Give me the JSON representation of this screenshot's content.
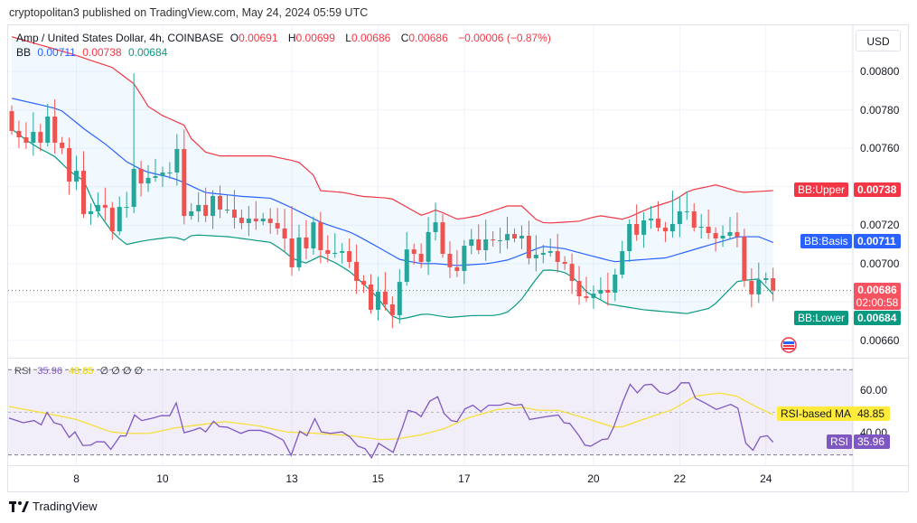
{
  "published": "cryptopolitan3 published on TradingView.com, May 24, 2024 05:59 UTC",
  "legend": {
    "symbol": "Amp / United States Dollar, 4h, COINBASE",
    "o_label": "O",
    "o": "0.00691",
    "h_label": "H",
    "h": "0.00699",
    "l_label": "L",
    "l": "0.00686",
    "c_label": "C",
    "c": "0.00686",
    "change": "−0.00006 (−0.87%)",
    "bb_label": "BB",
    "bb_basis": "0.00711",
    "bb_upper": "0.00738",
    "bb_lower": "0.00684"
  },
  "rsi_legend": {
    "label": "RSI",
    "rsi": "35.96",
    "ma": "48.85",
    "extras": "∅ ∅ ∅ ∅"
  },
  "currency": "USD",
  "tags": {
    "upper_label": "BB:Upper",
    "upper_value": "0.00738",
    "basis_label": "BB:Basis",
    "basis_value": "0.00711",
    "price_value": "0.00686",
    "countdown": "02:00:58",
    "lower_label": "BB:Lower",
    "lower_value": "0.00684",
    "rsi_ma_label": "RSI-based MA",
    "rsi_ma_value": "48.85",
    "rsi_label": "RSI",
    "rsi_value": "35.96"
  },
  "footer": {
    "brand": "TradingView"
  },
  "colors": {
    "up": "#26a69a",
    "down": "#ef5350",
    "upper": "#f23645",
    "basis": "#2962ff",
    "lower": "#089981",
    "rsi": "#7e57c2",
    "rsi_ma": "#f5e03a",
    "band_fill": "#2196f3"
  },
  "chart_data": [
    {
      "type": "candlestick",
      "title": "Amp / United States Dollar, 4h, COINBASE",
      "ylabel": "USD",
      "ylim": [
        0.00647,
        0.00818
      ],
      "y_ticks": [
        "0.00800",
        "0.00780",
        "0.00760",
        "0.00720",
        "0.00700",
        "0.00660"
      ],
      "grid_levels": [
        0.008,
        0.0078,
        0.0076,
        0.0074,
        0.0072,
        0.007,
        0.0068,
        0.0066
      ],
      "x_ticks": [
        {
          "label": "8",
          "index": 9
        },
        {
          "label": "10",
          "index": 21
        },
        {
          "label": "13",
          "index": 39
        },
        {
          "label": "15",
          "index": 51
        },
        {
          "label": "17",
          "index": 63
        },
        {
          "label": "20",
          "index": 81
        },
        {
          "label": "22",
          "index": 93
        },
        {
          "label": "24",
          "index": 105
        }
      ],
      "first_open": 0.007793,
      "closes": [
        0.00769,
        0.007657,
        0.007629,
        0.007685,
        0.007629,
        0.007765,
        0.007629,
        0.007601,
        0.007427,
        0.007483,
        0.007258,
        0.007272,
        0.007305,
        0.007291,
        0.007168,
        0.007295,
        0.007295,
        0.007493,
        0.007417,
        0.007446,
        0.007455,
        0.007474,
        0.007474,
        0.007596,
        0.007248,
        0.007272,
        0.007305,
        0.007248,
        0.007352,
        0.007281,
        0.007281,
        0.007239,
        0.007211,
        0.007234,
        0.00722,
        0.007234,
        0.007211,
        0.007183,
        0.007131,
        0.006981,
        0.007136,
        0.007079,
        0.007215,
        0.00707,
        0.007051,
        0.007056,
        0.007065,
        0.007009,
        0.00691,
        0.006891,
        0.00676,
        0.006854,
        0.006788,
        0.006732,
        0.006905,
        0.007074,
        0.007051,
        0.007009,
        0.007164,
        0.007215,
        0.007051,
        0.006981,
        0.006962,
        0.007093,
        0.007126,
        0.00707,
        0.007126,
        0.007121,
        0.007121,
        0.007154,
        0.007131,
        0.007145,
        0.007028,
        0.007046,
        0.007056,
        0.007065,
        0.007009,
        0.006999,
        0.00691,
        0.00683,
        0.006821,
        0.006844,
        0.006863,
        0.006849,
        0.006943,
        0.007065,
        0.007206,
        0.00715,
        0.007225,
        0.007234,
        0.007187,
        0.007168,
        0.007206,
        0.007272,
        0.007272,
        0.007187,
        0.007192,
        0.007159,
        0.007131,
        0.007145,
        0.007164,
        0.00714,
        0.00691,
        0.00684,
        0.006915,
        0.006924,
        0.00686
      ],
      "high_overrides": {
        "17": 0.00799,
        "39": 0.0073,
        "86": 0.00723,
        "92": 0.00738
      },
      "last_price": 0.00686,
      "bb_upper": [
        [
          0,
          0.00818
        ],
        [
          8.4,
          0.00809
        ],
        [
          14,
          0.00802
        ],
        [
          17.2,
          0.00793
        ],
        [
          18.9,
          0.00782
        ],
        [
          21,
          0.00777
        ],
        [
          24,
          0.00772
        ],
        [
          25,
          0.00765
        ],
        [
          27,
          0.00758
        ],
        [
          29,
          0.00756
        ],
        [
          36,
          0.00756
        ],
        [
          39.9,
          0.00753
        ],
        [
          42,
          0.00746
        ],
        [
          42.9,
          0.00738
        ],
        [
          46.2,
          0.00737
        ],
        [
          48.7,
          0.00735
        ],
        [
          52.8,
          0.00734
        ],
        [
          57.1,
          0.00725
        ],
        [
          59.1,
          0.00728
        ],
        [
          62.1,
          0.00723
        ],
        [
          65,
          0.00725
        ],
        [
          69,
          0.0073
        ],
        [
          71,
          0.0073
        ],
        [
          73,
          0.00723
        ],
        [
          74.2,
          0.00721
        ],
        [
          78.9,
          0.00722
        ],
        [
          81.8,
          0.00725
        ],
        [
          85.2,
          0.00723
        ],
        [
          88.9,
          0.00729
        ],
        [
          92.3,
          0.00733
        ],
        [
          94.3,
          0.00738
        ],
        [
          98.1,
          0.00741
        ],
        [
          101.5,
          0.00737
        ],
        [
          106,
          0.00738
        ]
      ],
      "bb_basis": [
        [
          0,
          0.00786
        ],
        [
          4.7,
          0.00782
        ],
        [
          6.8,
          0.0078
        ],
        [
          10.1,
          0.0077
        ],
        [
          13.1,
          0.00762
        ],
        [
          16,
          0.00753
        ],
        [
          18.5,
          0.00748
        ],
        [
          21.9,
          0.00745
        ],
        [
          23.5,
          0.00743
        ],
        [
          26.9,
          0.00737
        ],
        [
          32,
          0.00735
        ],
        [
          36.1,
          0.00734
        ],
        [
          39,
          0.00729
        ],
        [
          43.3,
          0.00721
        ],
        [
          47.4,
          0.00716
        ],
        [
          50.8,
          0.00709
        ],
        [
          54.1,
          0.00702
        ],
        [
          57.1,
          0.007
        ],
        [
          59.1,
          0.007
        ],
        [
          62.1,
          0.00699
        ],
        [
          66.3,
          0.007
        ],
        [
          69.2,
          0.00702
        ],
        [
          72.6,
          0.00707
        ],
        [
          73.8,
          0.00709
        ],
        [
          76.7,
          0.00708
        ],
        [
          79.7,
          0.00705
        ],
        [
          83.9,
          0.00701
        ],
        [
          91.1,
          0.00703
        ],
        [
          96.5,
          0.00709
        ],
        [
          101.1,
          0.00714
        ],
        [
          104,
          0.00714
        ],
        [
          106,
          0.00711
        ]
      ],
      "bb_lower": [
        [
          0,
          0.0077
        ],
        [
          2.1,
          0.00764
        ],
        [
          3.8,
          0.0076
        ],
        [
          5.9,
          0.00756
        ],
        [
          8.4,
          0.00747
        ],
        [
          10.1,
          0.00743
        ],
        [
          11.8,
          0.00728
        ],
        [
          13.1,
          0.00721
        ],
        [
          14.3,
          0.00715
        ],
        [
          16,
          0.0071
        ],
        [
          18.5,
          0.00712
        ],
        [
          22.6,
          0.00714
        ],
        [
          23.9,
          0.00712
        ],
        [
          25.2,
          0.00715
        ],
        [
          30.2,
          0.00714
        ],
        [
          36.1,
          0.00711
        ],
        [
          37.7,
          0.00707
        ],
        [
          39,
          0.00703
        ],
        [
          40.8,
          0.007
        ],
        [
          43,
          0.00704
        ],
        [
          45.3,
          0.007
        ],
        [
          47.4,
          0.00695
        ],
        [
          50.8,
          0.00683
        ],
        [
          52.8,
          0.00673
        ],
        [
          54.1,
          0.00671
        ],
        [
          57.5,
          0.00674
        ],
        [
          60.9,
          0.00672
        ],
        [
          64.2,
          0.00673
        ],
        [
          67.5,
          0.00673
        ],
        [
          69.2,
          0.00675
        ],
        [
          70.9,
          0.00681
        ],
        [
          72.6,
          0.0069
        ],
        [
          74.1,
          0.00697
        ],
        [
          76.7,
          0.00696
        ],
        [
          78.5,
          0.00692
        ],
        [
          80.1,
          0.00685
        ],
        [
          83,
          0.00679
        ],
        [
          88,
          0.00676
        ],
        [
          94,
          0.00674
        ],
        [
          97.4,
          0.00677
        ],
        [
          101.1,
          0.00691
        ],
        [
          104,
          0.00692
        ],
        [
          106,
          0.00684
        ]
      ]
    },
    {
      "type": "line",
      "title": "RSI",
      "ylim": [
        20,
        80
      ],
      "y_ticks": [
        "60.00",
        "40.00"
      ],
      "bands": [
        70,
        50,
        30
      ],
      "series": [
        {
          "name": "RSI",
          "points": [
            [
              -0.4,
              47.3
            ],
            [
              1.6,
              45.1
            ],
            [
              3.1,
              46.1
            ],
            [
              4.1,
              44.1
            ],
            [
              4.9,
              49.9
            ],
            [
              5.9,
              45.1
            ],
            [
              6.9,
              44.1
            ],
            [
              8,
              38.2
            ],
            [
              8.8,
              40.8
            ],
            [
              9.9,
              34.4
            ],
            [
              11,
              34.6
            ],
            [
              11.8,
              36.2
            ],
            [
              12.9,
              36.1
            ],
            [
              13.8,
              32.6
            ],
            [
              15.1,
              38.9
            ],
            [
              15.9,
              38.9
            ],
            [
              17.1,
              48.7
            ],
            [
              18.1,
              46.1
            ],
            [
              19.7,
              47.3
            ],
            [
              20.8,
              48.4
            ],
            [
              22,
              48.4
            ],
            [
              22.9,
              54.4
            ],
            [
              24,
              40.4
            ],
            [
              25.2,
              41.5
            ],
            [
              26.2,
              42.7
            ],
            [
              27,
              40.8
            ],
            [
              28.1,
              45.8
            ],
            [
              28.9,
              43.3
            ],
            [
              30,
              43.0
            ],
            [
              31.9,
              40.1
            ],
            [
              33,
              41.5
            ],
            [
              34.6,
              41.5
            ],
            [
              36,
              40.1
            ],
            [
              37.8,
              36.9
            ],
            [
              38.9,
              29.8
            ],
            [
              40.1,
              41.1
            ],
            [
              41.1,
              39.0
            ],
            [
              42.2,
              47.0
            ],
            [
              43.1,
              40.8
            ],
            [
              44.4,
              40.1
            ],
            [
              46,
              40.8
            ],
            [
              47.1,
              38.4
            ],
            [
              48.2,
              34.1
            ],
            [
              49.2,
              32.9
            ],
            [
              50.1,
              28.6
            ],
            [
              51.1,
              35.4
            ],
            [
              53.1,
              31.2
            ],
            [
              54.4,
              43.0
            ],
            [
              55.2,
              50.9
            ],
            [
              56.2,
              49.9
            ],
            [
              57,
              48.0
            ],
            [
              58.2,
              55.2
            ],
            [
              59.3,
              57.3
            ],
            [
              60.2,
              49.4
            ],
            [
              61.2,
              46.1
            ],
            [
              62,
              45.6
            ],
            [
              63.1,
              51.6
            ],
            [
              64.2,
              53.3
            ],
            [
              65.3,
              50.4
            ],
            [
              66.4,
              53.3
            ],
            [
              68,
              53.3
            ],
            [
              69,
              54.4
            ],
            [
              70,
              53.3
            ],
            [
              71,
              53.7
            ],
            [
              72.1,
              46.6
            ],
            [
              74.5,
              48.0
            ],
            [
              76.1,
              48.7
            ],
            [
              76.9,
              45.1
            ],
            [
              77.7,
              44.7
            ],
            [
              79,
              38.9
            ],
            [
              79.8,
              34.6
            ],
            [
              80.6,
              34.1
            ],
            [
              82.2,
              37.2
            ],
            [
              83,
              37.5
            ],
            [
              83.8,
              43.0
            ],
            [
              85.1,
              55.2
            ],
            [
              86.1,
              63.1
            ],
            [
              87.1,
              59.1
            ],
            [
              88.1,
              62.8
            ],
            [
              89.1,
              63.1
            ],
            [
              90.2,
              59.5
            ],
            [
              91.3,
              58.5
            ],
            [
              92.4,
              60.5
            ],
            [
              93.2,
              63.8
            ],
            [
              94.3,
              63.8
            ],
            [
              95.2,
              56.6
            ],
            [
              96.5,
              54.4
            ],
            [
              98.1,
              51.3
            ],
            [
              100.1,
              53.7
            ],
            [
              101.1,
              51.9
            ],
            [
              102.2,
              35.5
            ],
            [
              103.2,
              32.2
            ],
            [
              104.2,
              38.4
            ],
            [
              105.2,
              39.0
            ],
            [
              106,
              35.96
            ]
          ]
        },
        {
          "name": "RSI-based MA",
          "points": [
            [
              -0.4,
              52.7
            ],
            [
              4.9,
              49.4
            ],
            [
              9,
              46.6
            ],
            [
              13.8,
              40.8
            ],
            [
              15.9,
              40.1
            ],
            [
              19.2,
              40.1
            ],
            [
              22.8,
              42.7
            ],
            [
              26.1,
              44.1
            ],
            [
              29.7,
              45.6
            ],
            [
              34.2,
              43.7
            ],
            [
              38.2,
              40.8
            ],
            [
              42.3,
              40.1
            ],
            [
              47.2,
              39.0
            ],
            [
              51.3,
              37.2
            ],
            [
              53.7,
              37.5
            ],
            [
              57,
              39.4
            ],
            [
              60.2,
              42.3
            ],
            [
              63.5,
              47.3
            ],
            [
              67.6,
              51.3
            ],
            [
              71.3,
              52.3
            ],
            [
              73.3,
              50.9
            ],
            [
              76.1,
              50.9
            ],
            [
              79.8,
              47.3
            ],
            [
              83.8,
              43.0
            ],
            [
              85.1,
              43.3
            ],
            [
              87.9,
              46.6
            ],
            [
              92,
              51.3
            ],
            [
              95.2,
              57.6
            ],
            [
              98.5,
              59.0
            ],
            [
              100.9,
              57.6
            ],
            [
              103.4,
              53.0
            ],
            [
              106,
              48.85
            ]
          ]
        }
      ]
    }
  ]
}
